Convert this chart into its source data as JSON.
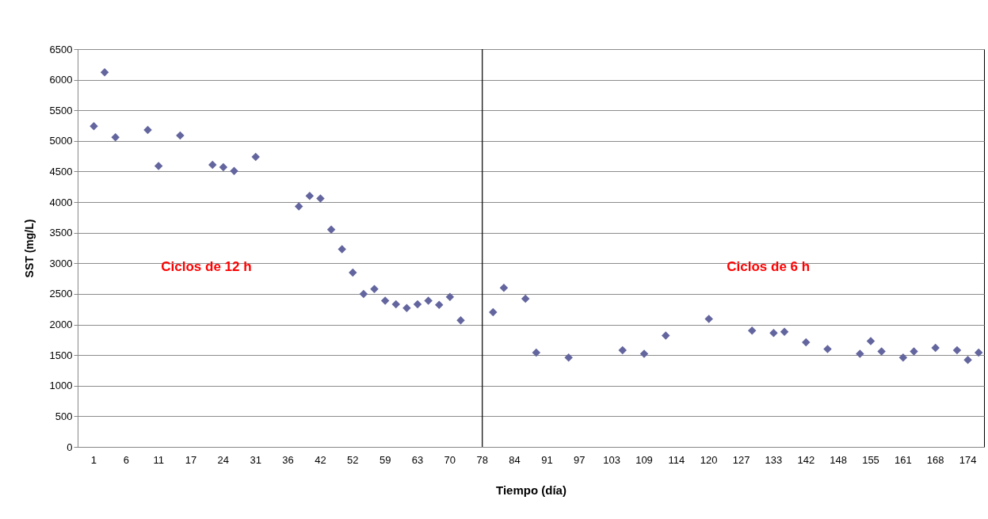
{
  "chart_data": {
    "type": "scatter",
    "xlabel": "Tiempo (día)",
    "ylabel": "SST (mg/L)",
    "categories": [
      null,
      "1",
      null,
      null,
      "6",
      null,
      null,
      "11",
      null,
      null,
      "17",
      null,
      null,
      "24",
      null,
      null,
      "31",
      null,
      null,
      "36",
      null,
      null,
      "42",
      null,
      null,
      "52",
      null,
      null,
      "59",
      null,
      null,
      "63",
      null,
      null,
      "70",
      null,
      null,
      "78",
      null,
      null,
      "84",
      null,
      null,
      "91",
      null,
      null,
      "97",
      null,
      null,
      "103",
      null,
      null,
      "109",
      null,
      null,
      "114",
      null,
      null,
      "120",
      null,
      null,
      "127",
      null,
      null,
      "133",
      null,
      null,
      "142",
      null,
      null,
      "148",
      null,
      null,
      "155",
      null,
      null,
      "161",
      null,
      null,
      "168",
      null,
      null,
      "174",
      null
    ],
    "series": [
      {
        "color": "#63659e",
        "values": [
          null,
          5240,
          6120,
          5060,
          null,
          null,
          5180,
          4590,
          null,
          5090,
          null,
          null,
          4610,
          4570,
          4510,
          null,
          4740,
          null,
          null,
          null,
          3930,
          4100,
          4060,
          3550,
          3230,
          2850,
          2500,
          2580,
          2390,
          2330,
          2270,
          2330,
          2390,
          2320,
          2450,
          2070,
          null,
          null,
          2200,
          2600,
          null,
          2420,
          1540,
          null,
          null,
          1460,
          null,
          null,
          null,
          null,
          1580,
          null,
          1520,
          null,
          1820,
          null,
          null,
          null,
          2090,
          null,
          null,
          null,
          1900,
          null,
          1860,
          1880,
          null,
          1710,
          null,
          1600,
          null,
          null,
          1520,
          1730,
          1560,
          null,
          1460,
          1560,
          null,
          1620,
          null,
          1580,
          1420,
          1540
        ]
      }
    ],
    "ylim": [
      0,
      6500
    ],
    "yticks": [
      0,
      500,
      1000,
      1500,
      2000,
      2500,
      3000,
      3500,
      4000,
      4500,
      5000,
      5500,
      6000,
      6500
    ],
    "grid": "y",
    "marker": "diamond",
    "ref_lines": [
      {
        "axis": "x",
        "value": "78",
        "color": "#000000"
      }
    ],
    "annotations": [
      "Ciclos de 12 h",
      "Ciclos de 6 h"
    ]
  }
}
